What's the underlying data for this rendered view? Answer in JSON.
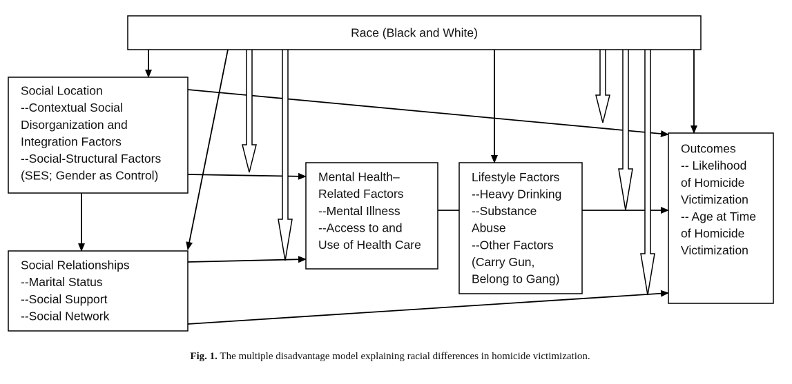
{
  "nodes": [
    {
      "id": "race",
      "lines": [
        "Race (Black and White)"
      ]
    },
    {
      "id": "social-location",
      "lines": [
        "Social Location",
        "--Contextual Social",
        "Disorganization and",
        "Integration Factors",
        "--Social-Structural Factors",
        "(SES; Gender as Control)"
      ]
    },
    {
      "id": "social-relationships",
      "lines": [
        "Social Relationships",
        "--Marital Status",
        "--Social Support",
        "--Social Network"
      ]
    },
    {
      "id": "mental-health",
      "lines": [
        "Mental Health–",
        "Related Factors",
        "--Mental Illness",
        "--Access to and",
        "Use of Health Care"
      ]
    },
    {
      "id": "lifestyle",
      "lines": [
        "Lifestyle Factors",
        "--Heavy Drinking",
        "--Substance",
        "Abuse",
        "--Other Factors",
        "(Carry Gun,",
        "Belong to Gang)"
      ]
    },
    {
      "id": "outcomes",
      "lines": [
        "Outcomes",
        "-- Likelihood",
        "of Homicide",
        "Victimization",
        "-- Age at Time",
        "of Homicide",
        "Victimization"
      ]
    }
  ],
  "caption": {
    "label": "Fig. 1.",
    "text": " The multiple disadvantage model explaining racial differences in homicide victimization."
  }
}
